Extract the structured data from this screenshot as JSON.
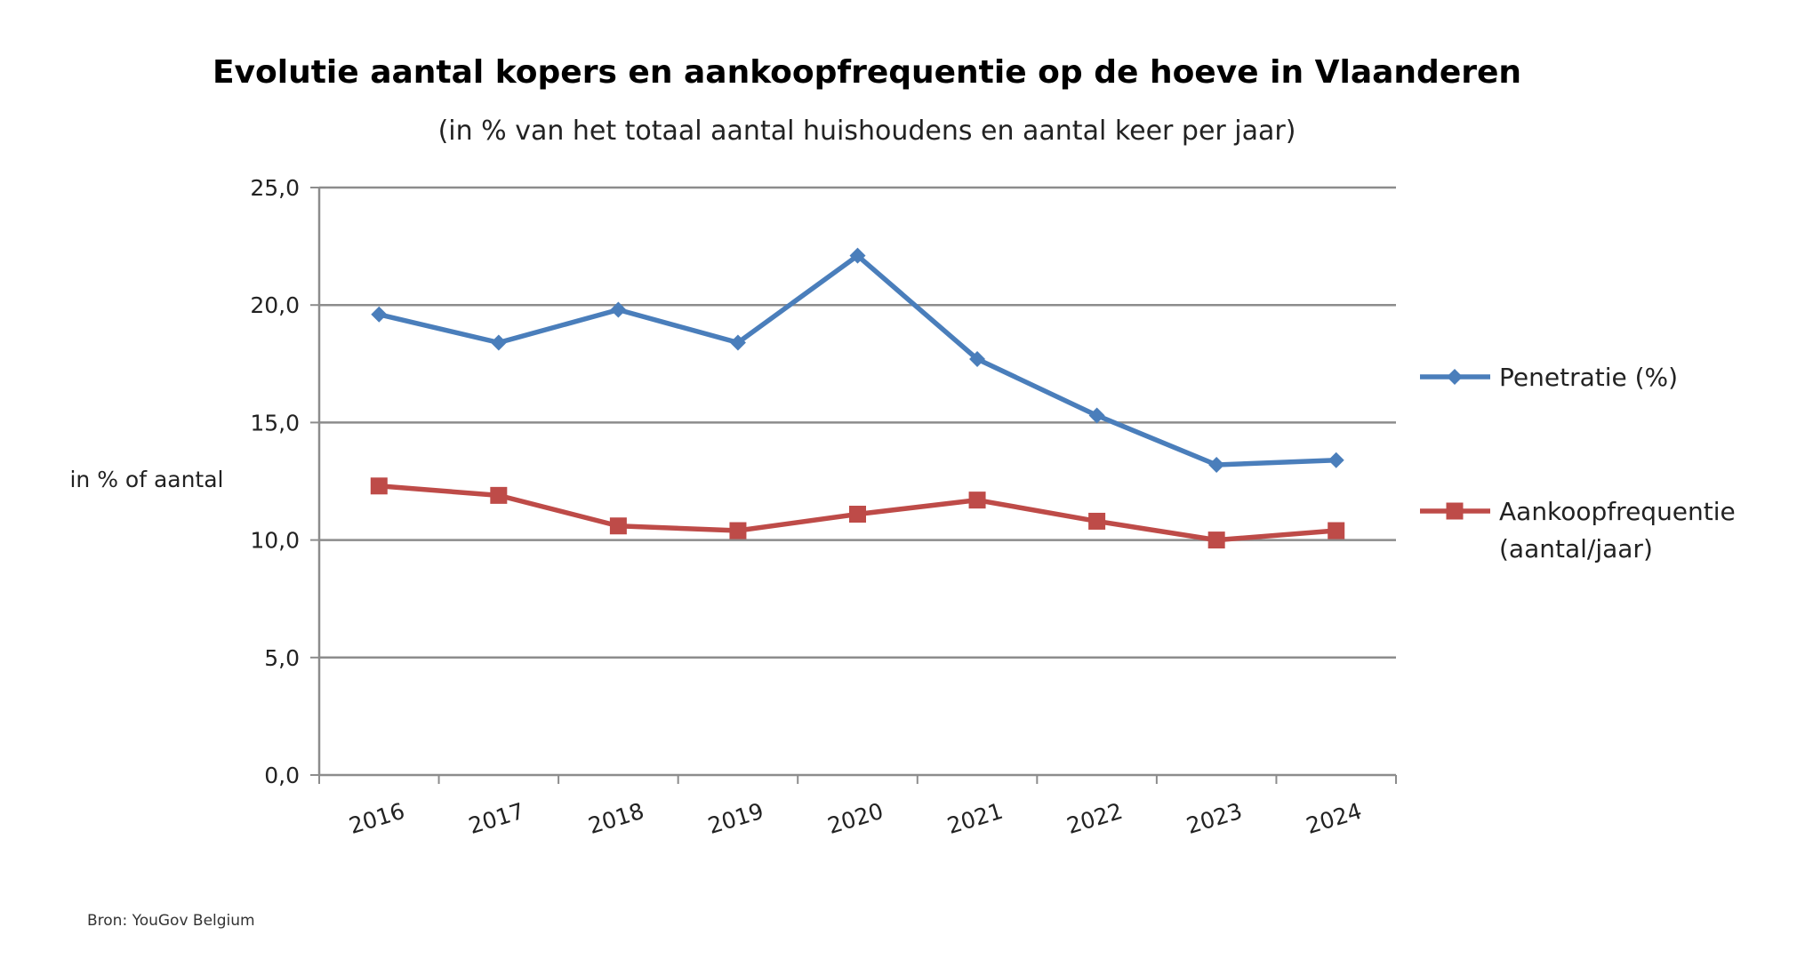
{
  "chart_data": {
    "type": "line",
    "title": "Evolutie aantal kopers en aankoopfrequentie op de hoeve in Vlaanderen",
    "subtitle": "(in % van het totaal aantal huishoudens en aantal keer per jaar)",
    "ylabel": "in % of aantal",
    "xlabel": "",
    "categories": [
      "2016",
      "2017",
      "2018",
      "2019",
      "2020",
      "2021",
      "2022",
      "2023",
      "2024"
    ],
    "ylim": [
      0,
      25
    ],
    "yticks": [
      "0,0",
      "5,0",
      "10,0",
      "15,0",
      "20,0",
      "25,0"
    ],
    "grid": true,
    "legend_position": "right",
    "series": [
      {
        "name": "Penetratie (%)",
        "color": "#4a7ebb",
        "marker": "diamond",
        "values": [
          19.6,
          18.4,
          19.8,
          18.4,
          22.1,
          17.7,
          15.3,
          13.2,
          13.4
        ]
      },
      {
        "name": "Aankoopfrequentie (aantal/jaar)",
        "legend_lines": [
          "Aankoopfrequentie",
          "(aantal/jaar)"
        ],
        "color": "#be4b48",
        "marker": "square",
        "values": [
          12.3,
          11.9,
          10.6,
          10.4,
          11.1,
          11.7,
          10.8,
          10.0,
          10.4
        ]
      }
    ]
  },
  "source": "Bron: YouGov Belgium"
}
